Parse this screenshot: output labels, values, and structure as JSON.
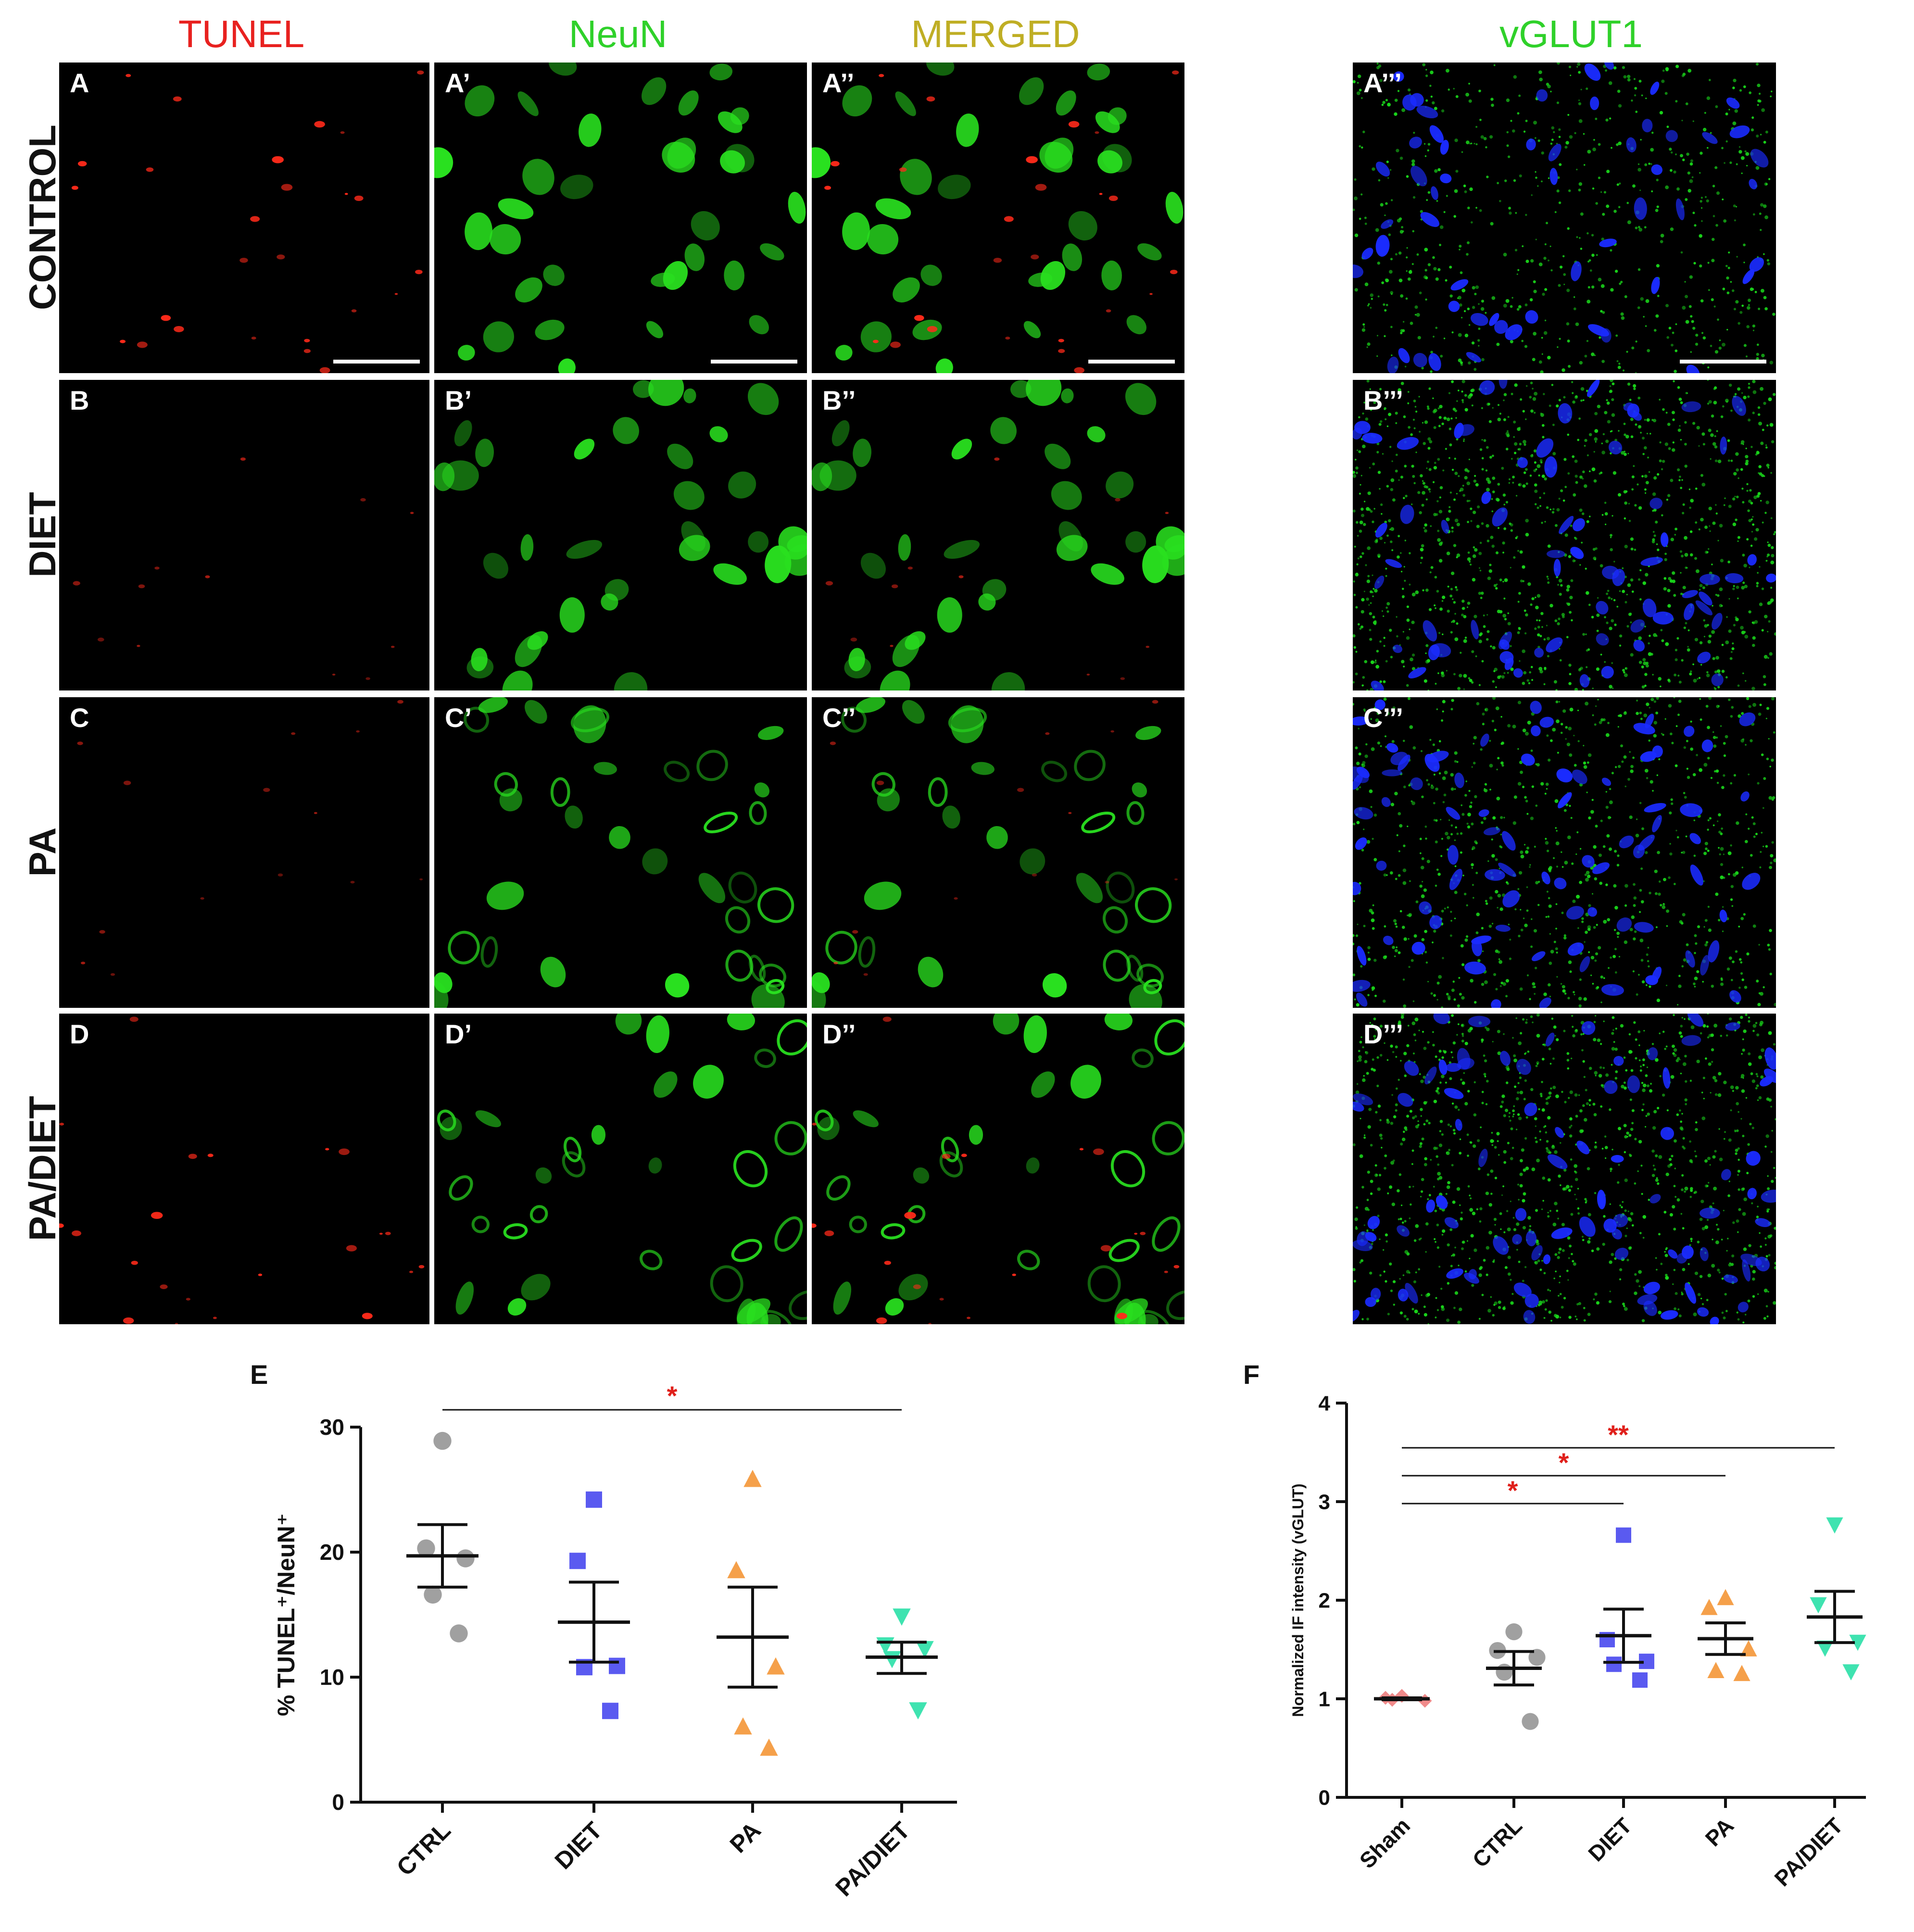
{
  "columns": [
    {
      "label": "TUNEL",
      "color": "#e8211f"
    },
    {
      "label": "NeuN",
      "color": "#2fd12a"
    },
    {
      "label": "MERGED",
      "color": "#bfae24"
    },
    {
      "label": "vGLUT1",
      "color": "#2fd12a"
    }
  ],
  "rows": [
    "CONTROL",
    "DIET",
    "PA",
    "PA/DIET"
  ],
  "panel_labels": [
    [
      "A",
      "A’",
      "A’’",
      "A’’’"
    ],
    [
      "B",
      "B’",
      "B’’",
      "B’’’"
    ],
    [
      "C",
      "C’",
      "C’’",
      "C’’’"
    ],
    [
      "D",
      "D’",
      "D’’",
      "D’’’"
    ]
  ],
  "colors": {
    "tunel": "#ff2a1a",
    "neun": "#29e01f",
    "vglut": "#19d41a",
    "nuclei": "#1a2bff",
    "ctrl": "#a0a0a0",
    "diet": "#5a5af0",
    "pa": "#f5a04a",
    "padiet": "#3fe3b0",
    "sham": "#f08a8a",
    "significance": "#e0201b"
  },
  "chart_data": [
    {
      "panel": "E",
      "type": "scatter",
      "ylabel": "% TUNEL⁺/NeuN⁺",
      "ylim": [
        0,
        30
      ],
      "yticks": [
        "0",
        "10",
        "20",
        "30"
      ],
      "categories": [
        "CTRL",
        "DIET",
        "PA",
        "PA/DIET"
      ],
      "series": [
        {
          "category": "CTRL",
          "marker": "circle",
          "points": [
            28.9,
            20.3,
            19.5,
            16.6,
            13.5
          ],
          "mean": 19.7,
          "sem_low": 17.2,
          "sem_high": 22.2
        },
        {
          "category": "DIET",
          "marker": "square",
          "points": [
            24.2,
            19.3,
            10.9,
            10.8,
            7.3
          ],
          "mean": 14.4,
          "sem_low": 11.2,
          "sem_high": 17.6
        },
        {
          "category": "PA",
          "marker": "triangle-up",
          "points": [
            25.8,
            18.5,
            10.8,
            6.0,
            4.3
          ],
          "mean": 13.2,
          "sem_low": 9.2,
          "sem_high": 17.2
        },
        {
          "category": "PA/DIET",
          "marker": "triangle-down",
          "points": [
            14.9,
            12.6,
            12.3,
            11.5,
            7.4
          ],
          "mean": 11.6,
          "sem_low": 10.3,
          "sem_high": 12.8
        }
      ],
      "significance": [
        {
          "from": "CTRL",
          "to": "PA/DIET",
          "label": "*"
        }
      ]
    },
    {
      "panel": "F",
      "type": "scatter",
      "ylabel": "Normalized IF intensity (vGLUT)",
      "ylim": [
        0,
        4
      ],
      "yticks": [
        "0",
        "1",
        "2",
        "3",
        "4"
      ],
      "categories": [
        "Sham",
        "CTRL",
        "DIET",
        "PA",
        "PA/DIET"
      ],
      "series": [
        {
          "category": "Sham",
          "marker": "diamond",
          "points": [
            1.03,
            1.01,
            0.98,
            0.99
          ],
          "mean": 1.0,
          "sem_low": 0.99,
          "sem_high": 1.01
        },
        {
          "category": "CTRL",
          "marker": "circle",
          "points": [
            1.68,
            1.49,
            1.42,
            1.27,
            0.77
          ],
          "mean": 1.31,
          "sem_low": 1.14,
          "sem_high": 1.48
        },
        {
          "category": "DIET",
          "marker": "square",
          "points": [
            2.66,
            1.6,
            1.38,
            1.35,
            1.19
          ],
          "mean": 1.64,
          "sem_low": 1.37,
          "sem_high": 1.91
        },
        {
          "category": "PA",
          "marker": "triangle-up",
          "points": [
            2.02,
            1.92,
            1.5,
            1.28,
            1.25
          ],
          "mean": 1.61,
          "sem_low": 1.45,
          "sem_high": 1.77
        },
        {
          "category": "PA/DIET",
          "marker": "triangle-down",
          "points": [
            2.77,
            1.96,
            1.58,
            1.52,
            1.28
          ],
          "mean": 1.83,
          "sem_low": 1.57,
          "sem_high": 2.09
        }
      ],
      "significance": [
        {
          "from": "Sham",
          "to": "DIET",
          "label": "*"
        },
        {
          "from": "Sham",
          "to": "PA",
          "label": "*"
        },
        {
          "from": "Sham",
          "to": "PA/DIET",
          "label": "**"
        }
      ]
    }
  ]
}
